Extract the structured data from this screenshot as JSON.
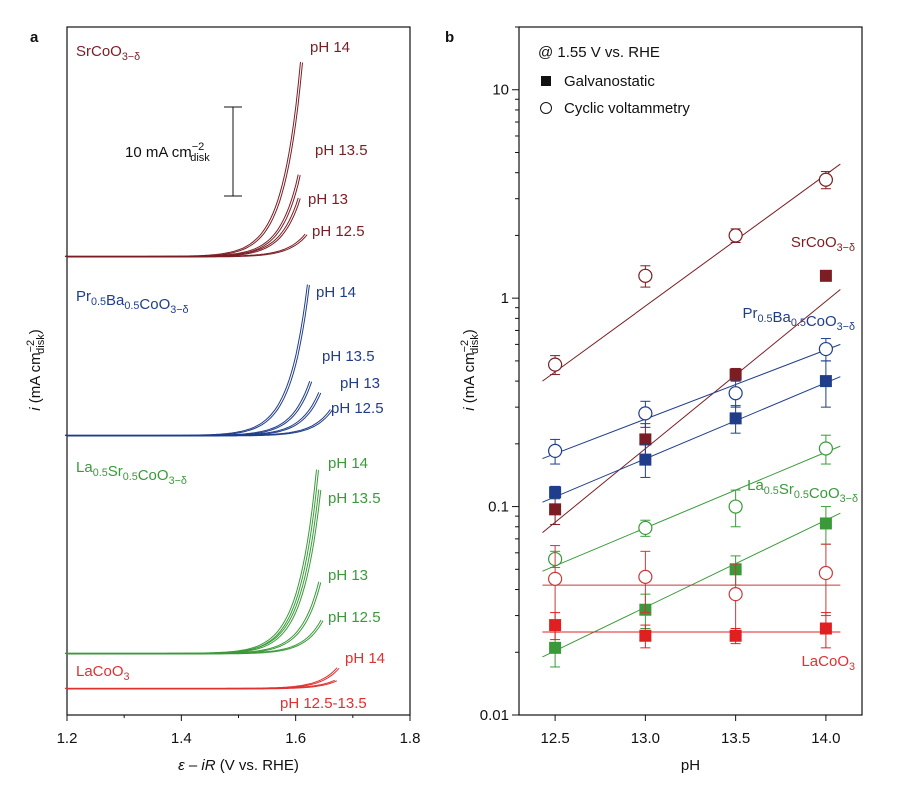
{
  "chart_data": [
    {
      "panel": "a",
      "type": "line",
      "xlabel": "ε – iR (V vs. RHE)",
      "ylabel": "i (mA cm−2disk)",
      "xlim": [
        1.2,
        1.8
      ],
      "xticks": [
        "1.2",
        "1.4",
        "1.6",
        "1.8"
      ],
      "scale_bar": "10 mA cm−2disk",
      "scale_bar_value": 10,
      "groups": [
        {
          "material": "SrCoO3−δ",
          "color": "#7a1e24",
          "curves": [
            {
              "label": "pH 14",
              "end_v": 1.615,
              "end_i": 24
            },
            {
              "label": "pH 13.5",
              "end_v": 1.61,
              "end_i": 9.8
            },
            {
              "label": "pH 13",
              "end_v": 1.61,
              "end_i": 7
            },
            {
              "label": "pH 12.5",
              "end_v": 1.62,
              "end_i": 2.5
            }
          ]
        },
        {
          "material": "Pr0.5Ba0.5CoO3−δ",
          "color": "#1f3d8a",
          "curves": [
            {
              "label": "pH 14",
              "end_v": 1.625,
              "end_i": 17.5
            },
            {
              "label": "pH 13.5",
              "end_v": 1.63,
              "end_i": 6.5
            },
            {
              "label": "pH 13",
              "end_v": 1.645,
              "end_i": 5
            },
            {
              "label": "pH 12.5",
              "end_v": 1.665,
              "end_i": 3
            }
          ]
        },
        {
          "material": "La0.5Sr0.5CoO3−δ",
          "color": "#3a9a3a",
          "curves": [
            {
              "label": "pH 14",
              "end_v": 1.642,
              "end_i": 22
            },
            {
              "label": "pH 13.5",
              "end_v": 1.645,
              "end_i": 19
            },
            {
              "label": "pH 13",
              "end_v": 1.645,
              "end_i": 8.3
            },
            {
              "label": "pH 12.5",
              "end_v": 1.65,
              "end_i": 4
            }
          ]
        },
        {
          "material": "LaCoO3",
          "color": "#e03030",
          "curves": [
            {
              "label": "pH 14",
              "end_v": 1.677,
              "end_i": 2.4
            },
            {
              "label": "pH 12.5-13.5",
              "end_v": 1.675,
              "end_i": 1.0
            }
          ]
        }
      ]
    },
    {
      "panel": "b",
      "type": "scatter",
      "xlabel": "pH",
      "ylabel": "i (mA cm−2disk)",
      "xlim": [
        12.3,
        14.2
      ],
      "ylim": [
        0.01,
        20
      ],
      "yscale": "log",
      "xticks": [
        "12.5",
        "13.0",
        "13.5",
        "14.0"
      ],
      "yticks": [
        "0.01",
        "0.1",
        "1",
        "10"
      ],
      "x": [
        12.5,
        13.0,
        13.5,
        14.0
      ],
      "legend": {
        "title": "@ 1.55 V vs. RHE",
        "filled": "Galvanostatic",
        "open": "Cyclic voltammetry",
        "placement": "top-left"
      },
      "series": [
        {
          "material": "SrCoO3−δ",
          "method": "Cyclic voltammetry",
          "color": "#7a1e24",
          "values": [
            0.48,
            1.28,
            2.0,
            3.7
          ],
          "err": [
            0.05,
            0.15,
            0.15,
            0.35
          ],
          "fit": [
            0.4,
            4.4
          ]
        },
        {
          "material": "SrCoO3−δ",
          "method": "Galvanostatic",
          "color": "#7a1e24",
          "values": [
            0.097,
            0.21,
            0.43,
            1.28
          ],
          "err": [
            0.015,
            0.04,
            0.03,
            0.05
          ],
          "fit": [
            0.075,
            1.1
          ]
        },
        {
          "material": "Pr0.5Ba0.5CoO3−δ",
          "method": "Cyclic voltammetry",
          "color": "#1f3d8a",
          "values": [
            0.185,
            0.28,
            0.35,
            0.57
          ],
          "err": [
            0.025,
            0.04,
            0.05,
            0.07
          ],
          "fit": [
            0.17,
            0.6
          ]
        },
        {
          "material": "Pr0.5Ba0.5CoO3−δ",
          "method": "Galvanostatic",
          "color": "#1f3d8a",
          "values": [
            0.117,
            0.168,
            0.265,
            0.4
          ],
          "err": [
            0.008,
            0.03,
            0.04,
            0.1
          ],
          "fit": [
            0.105,
            0.42
          ]
        },
        {
          "material": "La0.5Sr0.5CoO3−δ",
          "method": "Cyclic voltammetry",
          "color": "#3a9a3a",
          "values": [
            0.056,
            0.079,
            0.1,
            0.19
          ],
          "err": [
            0.005,
            0.007,
            0.02,
            0.03
          ],
          "fit": [
            0.049,
            0.195
          ]
        },
        {
          "material": "La0.5Sr0.5CoO3−δ",
          "method": "Galvanostatic",
          "color": "#3a9a3a",
          "values": [
            0.021,
            0.032,
            0.05,
            0.083
          ],
          "err": [
            0.004,
            0.006,
            0.008,
            0.017
          ],
          "fit": [
            0.019,
            0.093
          ]
        },
        {
          "material": "LaCoO3",
          "method": "Cyclic voltammetry",
          "color": "#c83a3a",
          "values": [
            0.045,
            0.046,
            0.038,
            0.048
          ],
          "err": [
            0.02,
            0.015,
            0.015,
            0.018
          ],
          "fit": [
            0.042,
            0.042
          ]
        },
        {
          "material": "LaCoO3",
          "method": "Galvanostatic",
          "color": "#e02020",
          "values": [
            0.027,
            0.024,
            0.024,
            0.026
          ],
          "err": [
            0.004,
            0.003,
            0.002,
            0.005
          ],
          "fit": [
            0.025,
            0.025
          ]
        }
      ],
      "labels": [
        "SrCoO3−δ",
        "Pr0.5Ba0.5CoO3−δ",
        "La0.5Sr0.5CoO3−δ",
        "LaCoO3"
      ]
    }
  ],
  "panel_labels": [
    "a",
    "b"
  ]
}
